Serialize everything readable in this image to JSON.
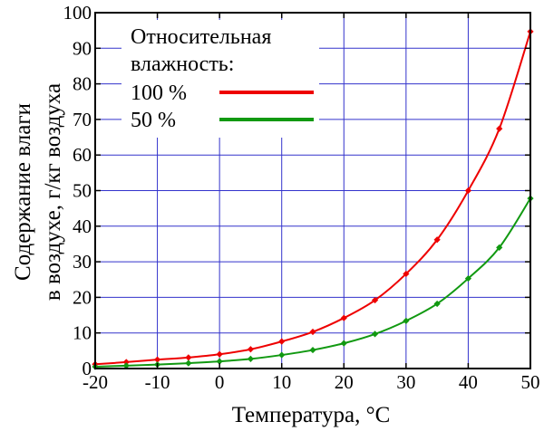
{
  "chart_data": {
    "type": "line",
    "title": "",
    "xlabel": "Температура, °C",
    "ylabel_lines": [
      "Содержание влаги",
      "в воздухе, г/кг воздуха"
    ],
    "xlim": [
      -20,
      50
    ],
    "ylim": [
      0,
      100
    ],
    "x_ticks": [
      -20,
      -10,
      0,
      10,
      20,
      30,
      40,
      50
    ],
    "y_ticks": [
      0,
      10,
      20,
      30,
      40,
      50,
      60,
      70,
      80,
      90,
      100
    ],
    "grid": true,
    "grid_color": "#3333cc",
    "legend": {
      "title_lines": [
        "Относительная",
        "влажность:"
      ],
      "placement": "top-left"
    },
    "x": [
      -20,
      -15,
      -10,
      -5,
      0,
      5,
      10,
      15,
      20,
      25,
      30,
      35,
      40,
      45,
      50
    ],
    "series": [
      {
        "name": "100 %",
        "color": "#ee0000",
        "values": [
          1.2,
          1.8,
          2.5,
          3.1,
          4.0,
          5.4,
          7.6,
          10.3,
          14.2,
          19.2,
          26.6,
          36.2,
          50.0,
          67.4,
          94.7
        ]
      },
      {
        "name": "50 %",
        "color": "#119911",
        "values": [
          0.5,
          0.8,
          1.1,
          1.5,
          2.0,
          2.7,
          3.8,
          5.2,
          7.1,
          9.7,
          13.4,
          18.2,
          25.3,
          34.0,
          47.8
        ]
      }
    ]
  }
}
